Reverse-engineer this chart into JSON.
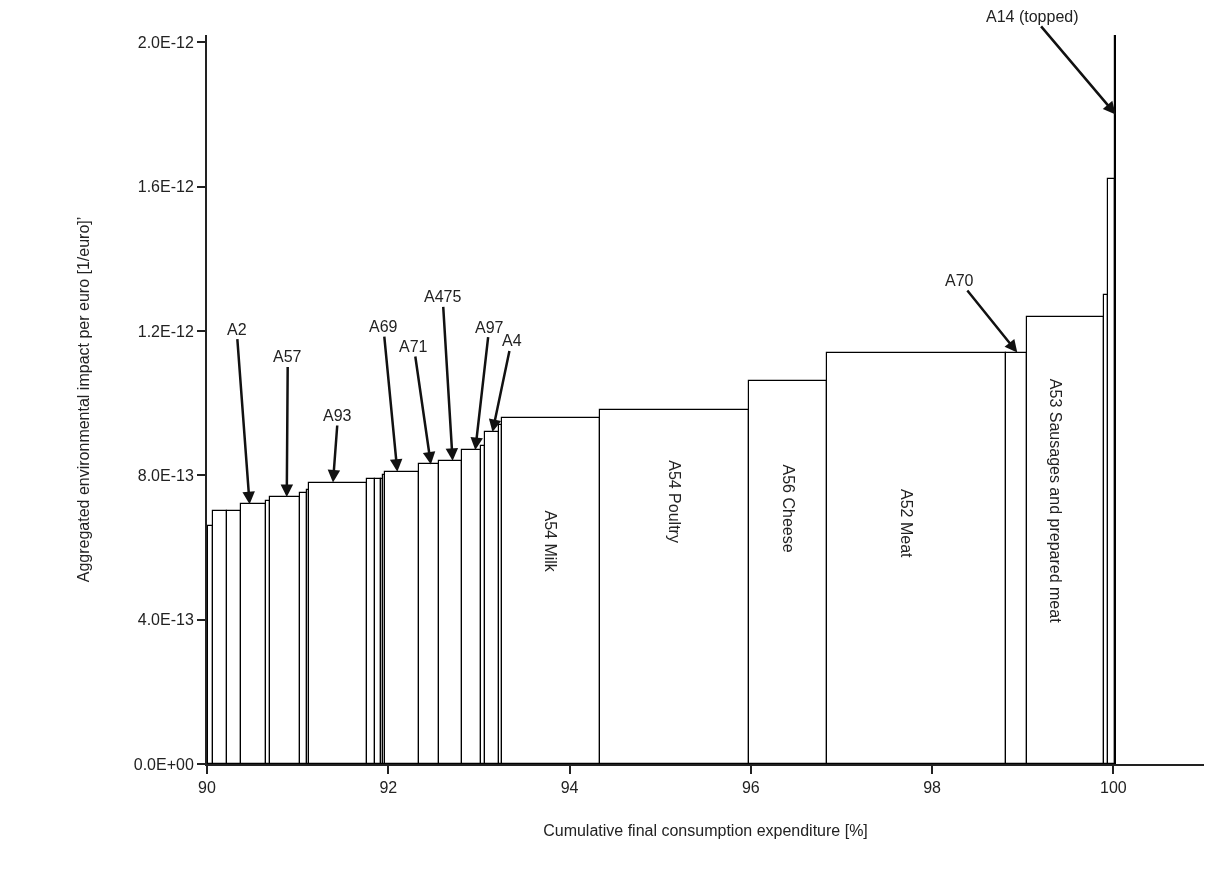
{
  "chart_data": {
    "type": "histogram",
    "xlabel": "Cumulative final consumption expenditure [%]",
    "ylabel": "Aggregated environmental impact per euro [1/euro]’",
    "bins": [
      90.01,
      90.07,
      90.22,
      90.37,
      90.65,
      90.7,
      91.03,
      91.1,
      91.12,
      91.76,
      91.85,
      91.92,
      91.94,
      91.96,
      92.34,
      92.56,
      92.81,
      93.02,
      93.07,
      93.22,
      93.26,
      94.34,
      95.98,
      96.84,
      98.82,
      99.05,
      99.9,
      99.94,
      100.02,
      100.03
    ],
    "values": [
      6.6e-13,
      7e-13,
      7e-13,
      7.2e-13,
      7.3e-13,
      7.4e-13,
      7.5e-13,
      7.6e-13,
      7.8e-13,
      7.9e-13,
      7.9e-13,
      7.9e-13,
      8e-13,
      8.1e-13,
      8.3e-13,
      8.4e-13,
      8.7e-13,
      8.8e-13,
      9.2e-13,
      9.4e-13,
      9.6e-13,
      9.8e-13,
      1.06e-12,
      1.14e-12,
      1.14e-12,
      1.24e-12,
      1.3e-12,
      1.62e-12,
      2.02e-12
    ],
    "color": "#ffffff",
    "xlim": [
      90,
      101
    ],
    "xticks": [
      90,
      92,
      94,
      96,
      98,
      100
    ],
    "ylim": [
      0,
      2.02e-12
    ],
    "yticks": [
      {
        "value": 0,
        "label": "0.0E+00"
      },
      {
        "value": 4e-13,
        "label": "4.0E-13"
      },
      {
        "value": 8e-13,
        "label": "8.0E-13"
      },
      {
        "value": 1.2e-12,
        "label": "1.2E-12"
      },
      {
        "value": 1.6e-12,
        "label": "1.6E-12"
      },
      {
        "value": 2e-12,
        "label": "2.0E-12"
      }
    ],
    "grid": false,
    "annotations": [
      {
        "text": "A2",
        "x": 90.47,
        "y": 7.2e-13
      },
      {
        "text": "A57",
        "x": 90.88,
        "y": 7.4e-13
      },
      {
        "text": "A93",
        "x": 91.39,
        "y": 7.8e-13
      },
      {
        "text": "A69",
        "x": 92.1,
        "y": 8.1e-13
      },
      {
        "text": "A71",
        "x": 92.47,
        "y": 8.3e-13
      },
      {
        "text": "A475",
        "x": 92.71,
        "y": 8.4e-13
      },
      {
        "text": "A97",
        "x": 92.96,
        "y": 8.7e-13
      },
      {
        "text": "A4",
        "x": 93.15,
        "y": 9.2e-13
      },
      {
        "text": "A70",
        "x": 98.94,
        "y": 1.14e-12
      },
      {
        "text": "A14 (topped)",
        "x": 100.025,
        "y": 1.8e-12
      },
      "A54 Milk",
      "A54 Poultry",
      "A56 Cheese",
      "A52 Meat",
      "A53 Sausages and prepared meat"
    ]
  }
}
